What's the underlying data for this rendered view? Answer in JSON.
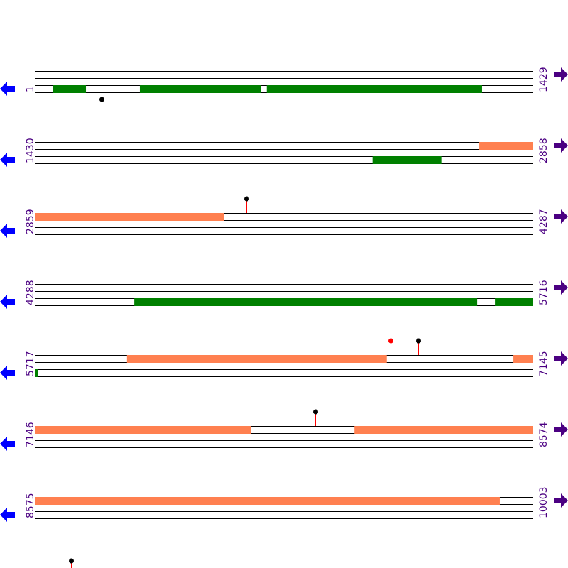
{
  "sequence_per_row": 1429,
  "colors": {
    "forward_feature": "#ff8050",
    "reverse_feature": "#008000",
    "label": "#4b0082",
    "left_arrow": "#0000ff",
    "right_arrow": "#4b0082",
    "line": "#000000",
    "stem": "#ff0000"
  },
  "icons": {
    "left": "arrow-left-icon",
    "right": "arrow-right-icon"
  },
  "rows": [
    {
      "start": "1",
      "end": "1429",
      "s": 1,
      "features": [
        {
          "lane": 2,
          "from": 52,
          "to": 146,
          "type": "reverse"
        },
        {
          "lane": 2,
          "from": 301,
          "to": 650,
          "type": "reverse"
        },
        {
          "lane": 2,
          "from": 666,
          "to": 1285,
          "type": "reverse"
        }
      ],
      "sites": [
        {
          "pos": 191,
          "dir": "below",
          "dot": "#000000"
        }
      ]
    },
    {
      "start": "1430",
      "end": "2858",
      "s": 1430,
      "features": [
        {
          "lane": 0,
          "from": 2706,
          "to": 2858,
          "type": "forward"
        },
        {
          "lane": 2,
          "from": 2399,
          "to": 2597,
          "type": "reverse"
        }
      ],
      "sites": []
    },
    {
      "start": "2859",
      "end": "4287",
      "s": 2859,
      "features": [
        {
          "lane": 0,
          "from": 2859,
          "to": 3400,
          "type": "forward"
        }
      ],
      "sites": [
        {
          "pos": 3465,
          "dir": "above",
          "dot": "#000000"
        }
      ]
    },
    {
      "start": "4288",
      "end": "5716",
      "s": 4288,
      "features": [
        {
          "lane": 2,
          "from": 4572,
          "to": 5558,
          "type": "reverse"
        },
        {
          "lane": 2,
          "from": 5609,
          "to": 5716,
          "type": "reverse"
        }
      ],
      "sites": []
    },
    {
      "start": "5717",
      "end": "7145",
      "s": 5717,
      "features": [
        {
          "lane": 0,
          "from": 5980,
          "to": 6727,
          "type": "forward"
        },
        {
          "lane": 0,
          "from": 7091,
          "to": 7145,
          "type": "forward"
        },
        {
          "lane": 2,
          "from": 5717,
          "to": 5725,
          "type": "reverse"
        }
      ],
      "sites": [
        {
          "pos": 6737,
          "dir": "above",
          "dot": "#ff0000"
        },
        {
          "pos": 6817,
          "dir": "above",
          "dot": "#000000"
        }
      ]
    },
    {
      "start": "7146",
      "end": "8574",
      "s": 7146,
      "features": [
        {
          "lane": 0,
          "from": 7146,
          "to": 7766,
          "type": "forward"
        },
        {
          "lane": 0,
          "from": 8063,
          "to": 8574,
          "type": "forward"
        }
      ],
      "sites": [
        {
          "pos": 7950,
          "dir": "above",
          "dot": "#000000"
        }
      ]
    },
    {
      "start": "8575",
      "end": "10003",
      "s": 8575,
      "features": [
        {
          "lane": 0,
          "from": 8575,
          "to": 9910,
          "type": "forward"
        }
      ],
      "sites": []
    }
  ],
  "trailing_site": {
    "pos": 10106,
    "dot": "#000000"
  }
}
